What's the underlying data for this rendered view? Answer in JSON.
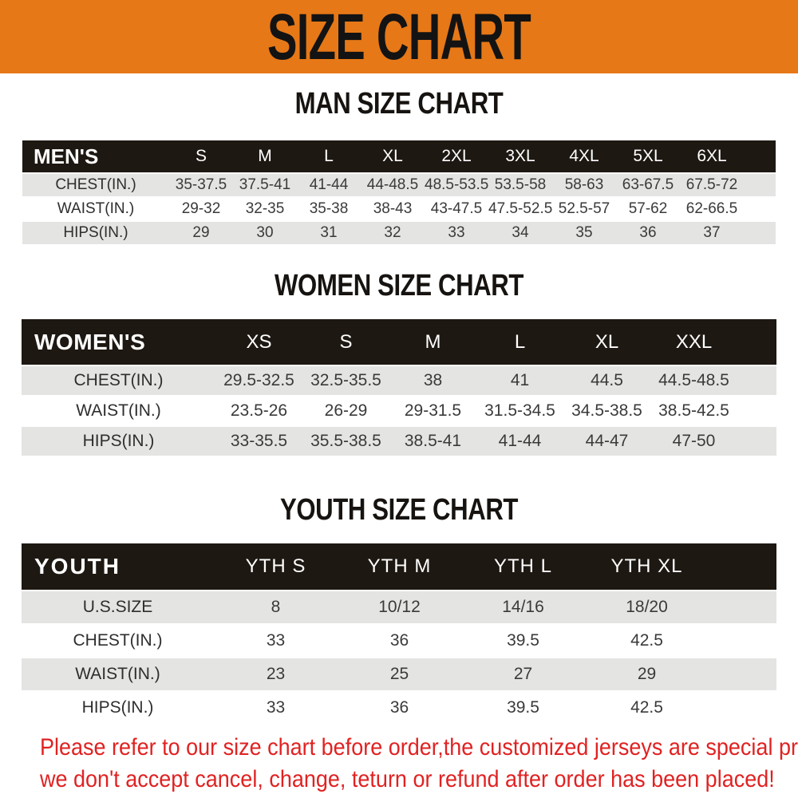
{
  "banner": {
    "title": "SIZE CHART"
  },
  "colors": {
    "banner_bg": "#E67817",
    "table_header_bg": "#1E1812",
    "row_stripe": "#E4E4E2",
    "footer_text": "#E02222"
  },
  "sections": [
    {
      "heading": "MAN SIZE CHART",
      "table": {
        "name": "MEN'S",
        "sizes": [
          "S",
          "M",
          "L",
          "XL",
          "2XL",
          "3XL",
          "4XL",
          "5XL",
          "6XL"
        ],
        "rows": [
          {
            "label": "CHEST(IN.)",
            "values": [
              "35-37.5",
              "37.5-41",
              "41-44",
              "44-48.5",
              "48.5-53.5",
              "53.5-58",
              "58-63",
              "63-67.5",
              "67.5-72"
            ]
          },
          {
            "label": "WAIST(IN.)",
            "values": [
              "29-32",
              "32-35",
              "35-38",
              "38-43",
              "43-47.5",
              "47.5-52.5",
              "52.5-57",
              "57-62",
              "62-66.5"
            ]
          },
          {
            "label": "HIPS(IN.)",
            "values": [
              "29",
              "30",
              "31",
              "32",
              "33",
              "34",
              "35",
              "36",
              "37"
            ]
          }
        ]
      }
    },
    {
      "heading": "WOMEN SIZE CHART",
      "table": {
        "name": "WOMEN'S",
        "sizes": [
          "XS",
          "S",
          "M",
          "L",
          "XL",
          "XXL"
        ],
        "rows": [
          {
            "label": "CHEST(IN.)",
            "values": [
              "29.5-32.5",
              "32.5-35.5",
              "38",
              "41",
              "44.5",
              "44.5-48.5"
            ]
          },
          {
            "label": "WAIST(IN.)",
            "values": [
              "23.5-26",
              "26-29",
              "29-31.5",
              "31.5-34.5",
              "34.5-38.5",
              "38.5-42.5"
            ]
          },
          {
            "label": "HIPS(IN.)",
            "values": [
              "33-35.5",
              "35.5-38.5",
              "38.5-41",
              "41-44",
              "44-47",
              "47-50"
            ]
          }
        ]
      }
    },
    {
      "heading": "YOUTH SIZE CHART",
      "table": {
        "name": "YOUTH",
        "sizes": [
          "YTH S",
          "YTH M",
          "YTH L",
          "YTH XL"
        ],
        "rows": [
          {
            "label": "U.S.SIZE",
            "values": [
              "8",
              "10/12",
              "14/16",
              "18/20"
            ]
          },
          {
            "label": "CHEST(IN.)",
            "values": [
              "33",
              "36",
              "39.5",
              "42.5"
            ]
          },
          {
            "label": "WAIST(IN.)",
            "values": [
              "23",
              "25",
              "27",
              "29"
            ]
          },
          {
            "label": "HIPS(IN.)",
            "values": [
              "33",
              "36",
              "39.5",
              "42.5"
            ]
          }
        ]
      }
    }
  ],
  "footer": {
    "line1": "Please refer to our size chart before order,the customized jerseys are special products,",
    "line2": "we don't accept cancel, change, teturn or refund after order has been placed!"
  }
}
